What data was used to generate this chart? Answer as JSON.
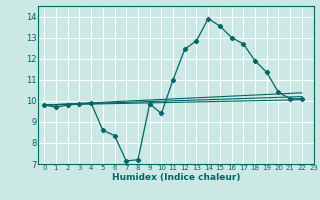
{
  "xlabel": "Humidex (Indice chaleur)",
  "bg_color": "#cce8e4",
  "grid_color": "#ffffff",
  "line_color": "#006666",
  "xlim": [
    -0.5,
    23
  ],
  "ylim": [
    7,
    14.5
  ],
  "xticks": [
    0,
    1,
    2,
    3,
    4,
    5,
    6,
    7,
    8,
    9,
    10,
    11,
    12,
    13,
    14,
    15,
    16,
    17,
    18,
    19,
    20,
    21,
    22,
    23
  ],
  "yticks": [
    7,
    8,
    9,
    10,
    11,
    12,
    13,
    14
  ],
  "curve": {
    "x": [
      0,
      1,
      2,
      3,
      4,
      5,
      6,
      7,
      8,
      9,
      10,
      11,
      12,
      13,
      14,
      15,
      16,
      17,
      18,
      19,
      20,
      21,
      22
    ],
    "y": [
      9.8,
      9.7,
      9.8,
      9.85,
      9.9,
      8.6,
      8.35,
      7.15,
      7.2,
      9.85,
      9.4,
      11.0,
      12.45,
      12.85,
      13.9,
      13.55,
      13.0,
      12.7,
      11.9,
      11.35,
      10.4,
      10.1,
      10.1
    ]
  },
  "straight_lines": [
    {
      "x": [
        0,
        22
      ],
      "y": [
        9.8,
        10.05
      ]
    },
    {
      "x": [
        0,
        22
      ],
      "y": [
        9.8,
        10.2
      ]
    },
    {
      "x": [
        0,
        22
      ],
      "y": [
        9.8,
        10.38
      ]
    }
  ]
}
